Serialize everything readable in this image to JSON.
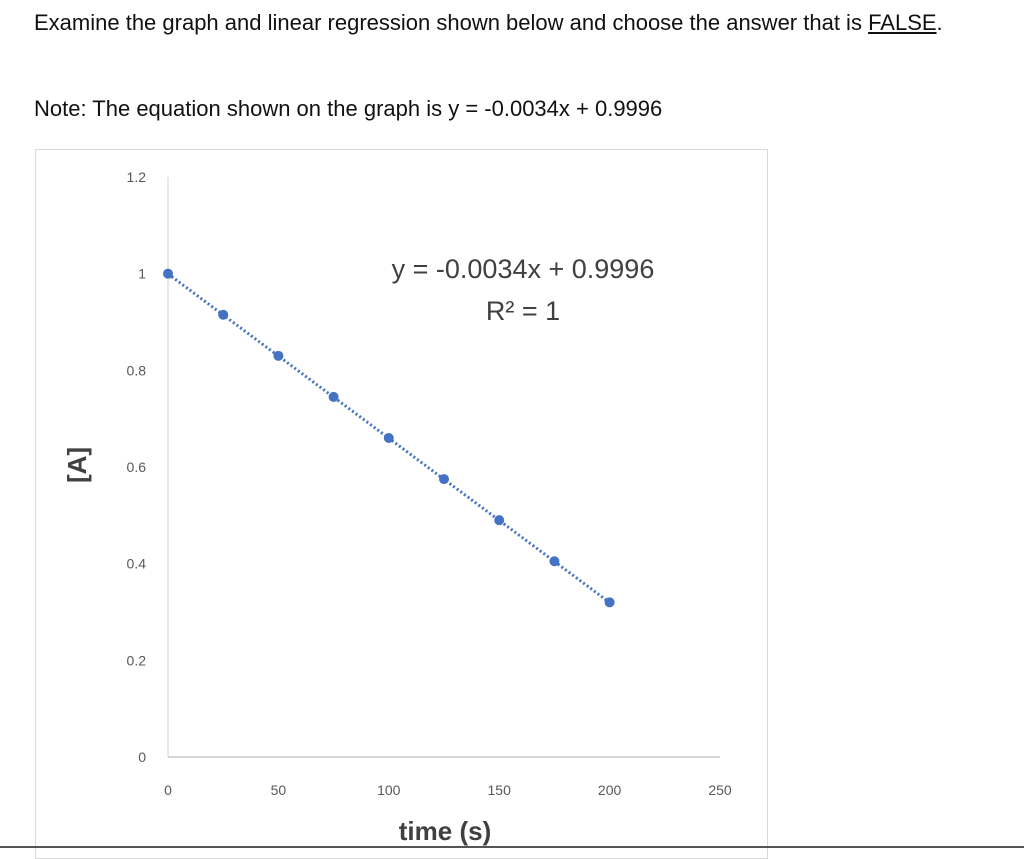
{
  "question": {
    "line_start": "Examine the graph and linear regression shown below and choose the answer that is ",
    "false_word": "FALSE",
    "line_end": "."
  },
  "note": "Note: The equation shown on the graph is y = -0.0034x + 0.9996",
  "chart_data": {
    "type": "scatter",
    "x": [
      0,
      25,
      50,
      75,
      100,
      125,
      150,
      175,
      200
    ],
    "y": [
      1.0,
      0.915,
      0.83,
      0.745,
      0.66,
      0.575,
      0.49,
      0.405,
      0.32
    ],
    "xlabel": "time (s)",
    "ylabel": "[A]",
    "xlim": [
      0,
      250
    ],
    "ylim": [
      0,
      1.2
    ],
    "xticks": [
      0,
      50,
      100,
      150,
      200,
      250
    ],
    "yticks": [
      0,
      0.2,
      0.4,
      0.6,
      0.8,
      1,
      1.2
    ],
    "trendline": {
      "slope": -0.0034,
      "intercept": 0.9996,
      "style": "dotted",
      "equation_label": "y = -0.0034x + 0.9996",
      "r2_label": "R² = 1"
    },
    "grid": false,
    "marker_color": "#4472c4"
  }
}
